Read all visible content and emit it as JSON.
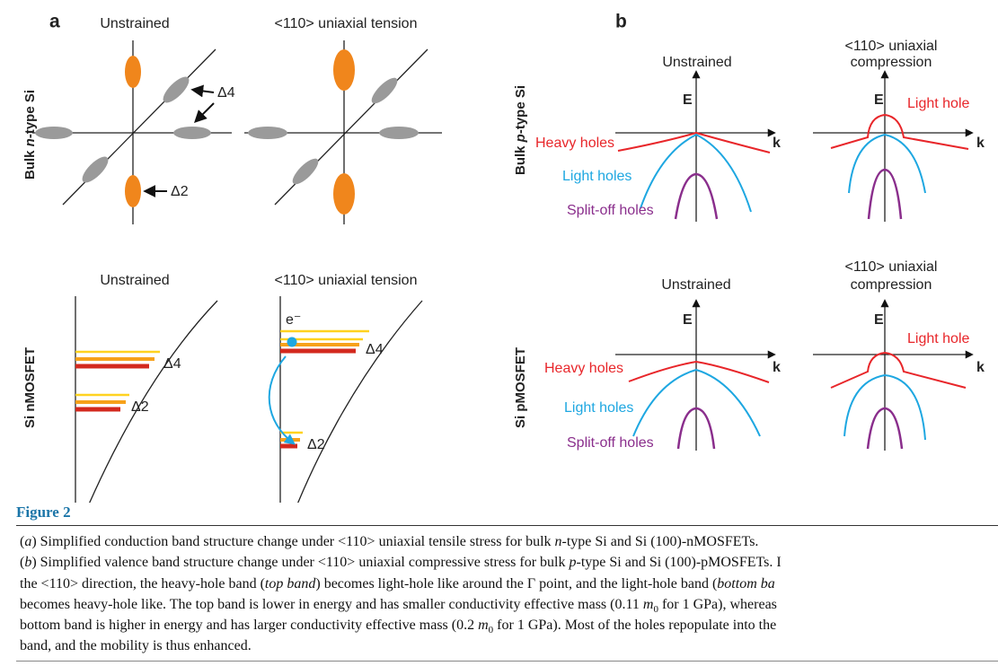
{
  "panel_a": {
    "label": "a",
    "row_labels": [
      [
        {
          "text": "Bulk "
        },
        {
          "text": "n",
          "style": "i"
        },
        {
          "text": "-type Si"
        }
      ],
      [
        {
          "text": "Si nMOSFET"
        }
      ]
    ],
    "subplots": [
      {
        "title": "Unstrained",
        "labels": [
          "Δ4",
          "Δ2"
        ]
      },
      {
        "title": "<110> uniaxial tension"
      },
      {
        "title": "Unstrained",
        "labels": [
          "Δ4",
          "Δ2"
        ]
      },
      {
        "title": "<110> uniaxial tension",
        "labels": [
          "e⁻",
          "Δ4",
          "Δ2"
        ]
      }
    ]
  },
  "panel_b": {
    "label": "b",
    "row_labels": [
      [
        {
          "text": "Bulk "
        },
        {
          "text": "p",
          "style": "i"
        },
        {
          "text": "-type Si"
        }
      ],
      [
        {
          "text": "Si pMOSFET"
        }
      ]
    ],
    "subplots": [
      {
        "title": [
          "Unstrained"
        ],
        "axes": [
          "E",
          "k"
        ],
        "bands": [
          "Heavy holes",
          "Light holes",
          "Split-off holes"
        ]
      },
      {
        "title": [
          "<110> uniaxial",
          "compression"
        ],
        "axes": [
          "E",
          "k"
        ],
        "bands": [
          "Light hole"
        ]
      },
      {
        "title": [
          "Unstrained"
        ],
        "axes": [
          "E",
          "k"
        ],
        "bands": [
          "Heavy holes",
          "Light holes",
          "Split-off holes"
        ]
      },
      {
        "title": [
          "<110> uniaxial",
          "compression"
        ],
        "axes": [
          "E",
          "k"
        ],
        "bands": [
          "Light hole"
        ]
      }
    ]
  },
  "figure_title": "Figure 2",
  "caption_lines": [
    [
      {
        "text": "("
      },
      {
        "text": "a",
        "style": "i"
      },
      {
        "text": ") Simplified conduction band structure change under <110> uniaxial tensile stress for bulk "
      },
      {
        "text": "n",
        "style": "i"
      },
      {
        "text": "-type Si and Si (100)-nMOSFETs."
      }
    ],
    [
      {
        "text": "("
      },
      {
        "text": "b",
        "style": "i"
      },
      {
        "text": ") Simplified valence band structure change under <110> uniaxial compressive stress for bulk "
      },
      {
        "text": "p",
        "style": "i"
      },
      {
        "text": "-type Si and Si (100)-pMOSFETs. I"
      }
    ],
    [
      {
        "text": "the <110> direction, the heavy-hole band ("
      },
      {
        "text": "top band",
        "style": "i"
      },
      {
        "text": ") becomes light-hole like around the Γ point, and the light-hole band ("
      },
      {
        "text": "bottom ba",
        "style": "i"
      }
    ],
    [
      {
        "text": "becomes heavy-hole like. The top band is lower in energy and has smaller conductivity effective mass (0.11 "
      },
      {
        "text": "m",
        "style": "i"
      },
      {
        "text": "0",
        "style": "sub"
      },
      {
        "text": " for 1 GPa), whereas"
      }
    ],
    [
      {
        "text": "bottom band is higher in energy and has larger conductivity effective mass (0.2 "
      },
      {
        "text": "m",
        "style": "i"
      },
      {
        "text": "0",
        "style": "sub"
      },
      {
        "text": " for 1 GPa). Most of the holes repopulate into the"
      }
    ],
    [
      {
        "text": "band, and the mobility is thus enhanced."
      }
    ]
  ]
}
